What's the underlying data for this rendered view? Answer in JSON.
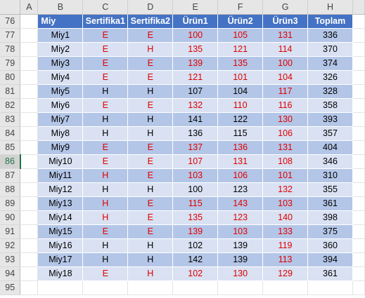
{
  "columns": [
    "A",
    "B",
    "C",
    "D",
    "E",
    "F",
    "G",
    "H"
  ],
  "header_row": {
    "row": "76",
    "cells": [
      "Miy",
      "Sertifika1",
      "Sertifika2",
      "Ürün1",
      "Ürün2",
      "Ürün3",
      "Toplam"
    ]
  },
  "active_row": "86",
  "colors": {
    "header_fill": "#4472c4",
    "band_dark": "#b4c6e7",
    "band_light": "#d9e1f2",
    "highlight_text": "#e00000",
    "active_row_header": "#217346"
  },
  "rows": [
    {
      "row": "77",
      "cells": [
        "Miy1",
        "E",
        "E",
        "100",
        "105",
        "131",
        "336"
      ],
      "red": [
        1,
        2,
        3,
        4,
        5
      ]
    },
    {
      "row": "78",
      "cells": [
        "Miy2",
        "E",
        "H",
        "135",
        "121",
        "114",
        "370"
      ],
      "red": [
        1,
        2,
        3,
        4,
        5
      ]
    },
    {
      "row": "79",
      "cells": [
        "Miy3",
        "E",
        "E",
        "139",
        "135",
        "100",
        "374"
      ],
      "red": [
        1,
        2,
        3,
        4,
        5
      ]
    },
    {
      "row": "80",
      "cells": [
        "Miy4",
        "E",
        "E",
        "121",
        "101",
        "104",
        "326"
      ],
      "red": [
        1,
        2,
        3,
        4,
        5
      ]
    },
    {
      "row": "81",
      "cells": [
        "Miy5",
        "H",
        "H",
        "107",
        "104",
        "117",
        "328"
      ],
      "red": [
        5
      ]
    },
    {
      "row": "82",
      "cells": [
        "Miy6",
        "E",
        "E",
        "132",
        "110",
        "116",
        "358"
      ],
      "red": [
        1,
        2,
        3,
        4,
        5
      ]
    },
    {
      "row": "83",
      "cells": [
        "Miy7",
        "H",
        "H",
        "141",
        "122",
        "130",
        "393"
      ],
      "red": [
        5
      ]
    },
    {
      "row": "84",
      "cells": [
        "Miy8",
        "H",
        "H",
        "136",
        "115",
        "106",
        "357"
      ],
      "red": [
        5
      ]
    },
    {
      "row": "85",
      "cells": [
        "Miy9",
        "E",
        "E",
        "137",
        "136",
        "131",
        "404"
      ],
      "red": [
        1,
        2,
        3,
        4,
        5
      ]
    },
    {
      "row": "86",
      "cells": [
        "Miy10",
        "E",
        "E",
        "107",
        "131",
        "108",
        "346"
      ],
      "red": [
        1,
        2,
        3,
        4,
        5
      ]
    },
    {
      "row": "87",
      "cells": [
        "Miy11",
        "H",
        "E",
        "103",
        "106",
        "101",
        "310"
      ],
      "red": [
        1,
        2,
        3,
        4,
        5
      ]
    },
    {
      "row": "88",
      "cells": [
        "Miy12",
        "H",
        "H",
        "100",
        "123",
        "132",
        "355"
      ],
      "red": [
        5
      ]
    },
    {
      "row": "89",
      "cells": [
        "Miy13",
        "H",
        "E",
        "115",
        "143",
        "103",
        "361"
      ],
      "red": [
        1,
        2,
        3,
        4,
        5
      ]
    },
    {
      "row": "90",
      "cells": [
        "Miy14",
        "H",
        "E",
        "135",
        "123",
        "140",
        "398"
      ],
      "red": [
        1,
        2,
        3,
        4,
        5
      ]
    },
    {
      "row": "91",
      "cells": [
        "Miy15",
        "E",
        "E",
        "139",
        "103",
        "133",
        "375"
      ],
      "red": [
        1,
        2,
        3,
        4,
        5
      ]
    },
    {
      "row": "92",
      "cells": [
        "Miy16",
        "H",
        "H",
        "102",
        "139",
        "119",
        "360"
      ],
      "red": [
        5
      ]
    },
    {
      "row": "93",
      "cells": [
        "Miy17",
        "H",
        "H",
        "142",
        "139",
        "113",
        "394"
      ],
      "red": [
        5
      ]
    },
    {
      "row": "94",
      "cells": [
        "Miy18",
        "E",
        "H",
        "102",
        "130",
        "129",
        "361"
      ],
      "red": [
        1,
        2,
        3,
        4,
        5
      ]
    }
  ],
  "empty_row": "95"
}
